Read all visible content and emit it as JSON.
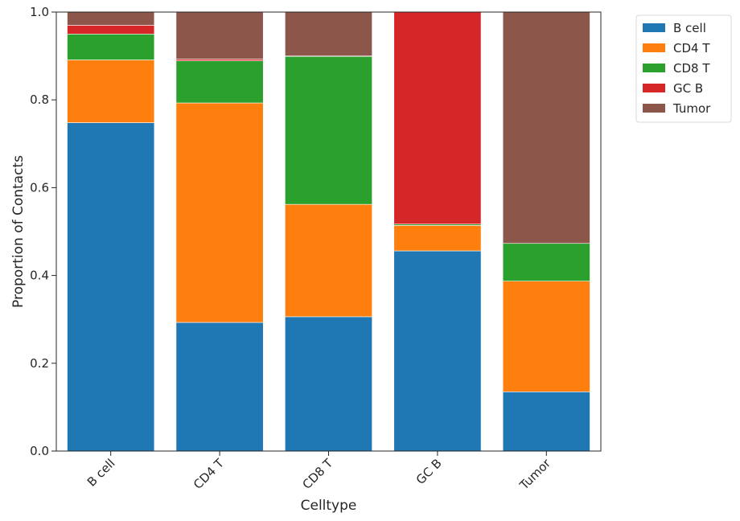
{
  "chart_data": {
    "type": "bar",
    "stacked": true,
    "categories": [
      "B cell",
      "CD4 T",
      "CD8 T",
      "GC B",
      "Tumor"
    ],
    "series": [
      {
        "name": "B cell",
        "color": "#1f77b4",
        "values": [
          0.748,
          0.293,
          0.306,
          0.456,
          0.135
        ]
      },
      {
        "name": "CD4 T",
        "color": "#ff7f0e",
        "values": [
          0.143,
          0.5,
          0.256,
          0.058,
          0.252
        ]
      },
      {
        "name": "CD8 T",
        "color": "#2ca02c",
        "values": [
          0.059,
          0.096,
          0.337,
          0.003,
          0.086
        ]
      },
      {
        "name": "GC B",
        "color": "#d62728",
        "values": [
          0.02,
          0.004,
          0.001,
          0.483,
          0.0
        ]
      },
      {
        "name": "Tumor",
        "color": "#8c564b",
        "values": [
          0.03,
          0.107,
          0.1,
          0.0,
          0.527
        ]
      }
    ],
    "xlabel": "Celltype",
    "ylabel": "Proportion of Contacts",
    "ylim": [
      0,
      1.0
    ],
    "yticks": [
      "0.0",
      "0.2",
      "0.4",
      "0.6",
      "0.8",
      "1.0"
    ],
    "grid": false,
    "legend_position": "outside-top-right"
  }
}
